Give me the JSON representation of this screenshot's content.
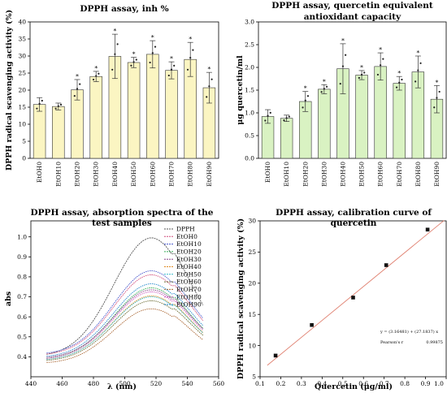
{
  "colors": {
    "bar_yellow": "#fbf5c2",
    "bar_green": "#d9f2c2",
    "fit_line": "#e08070",
    "axis": "#000000"
  },
  "chart_data": [
    {
      "type": "bar",
      "title": "DPPH assay, inh %",
      "xlabel": "",
      "ylabel": "DPPH radical scavenging activity (%)",
      "categories": [
        "EtOH0",
        "EtOH10",
        "EtOH20",
        "EtOH30",
        "EtOH40",
        "EtOH50",
        "EtOH60",
        "EtOH70",
        "EtOH80",
        "EtOH90"
      ],
      "values": [
        15.8,
        15.2,
        20.1,
        24.0,
        29.9,
        28.1,
        30.5,
        25.8,
        29.0,
        20.7
      ],
      "errors": [
        2.0,
        1.0,
        3.0,
        1.5,
        6.5,
        1.5,
        4.0,
        2.5,
        5.0,
        4.5
      ],
      "significance": [
        "",
        "",
        "*",
        "*",
        "*",
        "*",
        "*",
        "*",
        "*",
        "*"
      ],
      "ylim": [
        0,
        40
      ],
      "yticks": [
        0,
        5,
        10,
        15,
        20,
        25,
        30,
        35,
        40
      ]
    },
    {
      "type": "bar",
      "title": "DPPH assay, quercetin equivalent antioxidant capacity",
      "title_lines": [
        "DPPH assay, quercetin equivalent",
        "antioxidant capacity"
      ],
      "xlabel": "",
      "ylabel": "μg quercetin/ml",
      "categories": [
        "EtOH0",
        "EtOH10",
        "EtOH20",
        "EtOH30",
        "EtOH40",
        "EtOH50",
        "EtOH60",
        "EtOH70",
        "EtOH80",
        "EtOH90"
      ],
      "values": [
        0.92,
        0.88,
        1.25,
        1.52,
        1.97,
        1.83,
        2.02,
        1.65,
        1.9,
        1.3
      ],
      "errors": [
        0.15,
        0.07,
        0.22,
        0.1,
        0.55,
        0.1,
        0.3,
        0.15,
        0.35,
        0.3
      ],
      "significance": [
        "",
        "",
        "*",
        "*",
        "*",
        "*",
        "*",
        "*",
        "*",
        "*"
      ],
      "ylim": [
        0,
        3.0
      ],
      "yticks": [
        "0.0",
        "0.5",
        "1.0",
        "1.5",
        "2.0",
        "2.5",
        "3.0"
      ]
    },
    {
      "type": "line",
      "title": "DPPH assay, absorption spectra of the test samples",
      "title_lines": [
        "DPPH assay, absorption spectra of the",
        "test samples"
      ],
      "xlabel": "λ (nm)",
      "ylabel": "abs",
      "xlim": [
        440,
        560
      ],
      "ylim": [
        0.3,
        1.08
      ],
      "xticks": [
        440,
        460,
        480,
        500,
        520,
        540,
        560
      ],
      "yticks": [
        "0.4",
        "0.5",
        "0.6",
        "0.7",
        "0.8",
        "0.9",
        "1.0"
      ],
      "legend_position": "top-right",
      "series": [
        {
          "name": "DPPH",
          "color": "#555555",
          "peak": 0.995,
          "start": 0.42,
          "end": 0.8
        },
        {
          "name": "EtOH0",
          "color": "#d04a7a",
          "peak": 0.81,
          "start": 0.425,
          "end": 0.64
        },
        {
          "name": "EtOH10",
          "color": "#4455cc",
          "peak": 0.83,
          "start": 0.43,
          "end": 0.645
        },
        {
          "name": "EtOH20",
          "color": "#33aa55",
          "peak": 0.745,
          "start": 0.405,
          "end": 0.585
        },
        {
          "name": "EtOH30",
          "color": "#884488",
          "peak": 0.735,
          "start": 0.41,
          "end": 0.58
        },
        {
          "name": "EtOH40",
          "color": "#e08a22",
          "peak": 0.705,
          "start": 0.4,
          "end": 0.555
        },
        {
          "name": "EtOH50",
          "color": "#33bbcc",
          "peak": 0.7,
          "start": 0.4,
          "end": 0.55
        },
        {
          "name": "EtOH60",
          "color": "#6a6a30",
          "peak": 0.68,
          "start": 0.395,
          "end": 0.535
        },
        {
          "name": "EtOH70",
          "color": "#aa6633",
          "peak": 0.64,
          "start": 0.385,
          "end": 0.505
        },
        {
          "name": "EtOH80",
          "color": "#cc55bb",
          "peak": 0.725,
          "start": 0.405,
          "end": 0.57
        },
        {
          "name": "EtOH90",
          "color": "#2288cc",
          "peak": 0.765,
          "start": 0.415,
          "end": 0.6
        }
      ]
    },
    {
      "type": "scatter",
      "title": "DPPH assay, calibration curve of quercetin",
      "title_lines": [
        "DPPH assay, calibration curve of",
        "quercetin"
      ],
      "xlabel": "Quercetin (μg/ml)",
      "ylabel": "DPPH radical scavenging activity (%)",
      "x": [
        0.175,
        0.35,
        0.55,
        0.71,
        0.91
      ],
      "y": [
        8.4,
        13.3,
        17.7,
        22.9,
        28.6
      ],
      "xlim": [
        0.1,
        1.0
      ],
      "ylim": [
        5,
        30
      ],
      "xticks": [
        "0.1",
        "0.2",
        "0.3",
        "0.4",
        "0.5",
        "0.6",
        "0.7",
        "0.8",
        "0.9",
        "1.0"
      ],
      "yticks": [
        5,
        10,
        15,
        20,
        25,
        30
      ],
      "fit": {
        "slope": 27.1837,
        "intercept": 3.16481
      },
      "fit_equation": "y = (3.16481) + (27.1837) x",
      "pearson_label": "Pearson's r",
      "pearson_value": "0.99875"
    }
  ]
}
